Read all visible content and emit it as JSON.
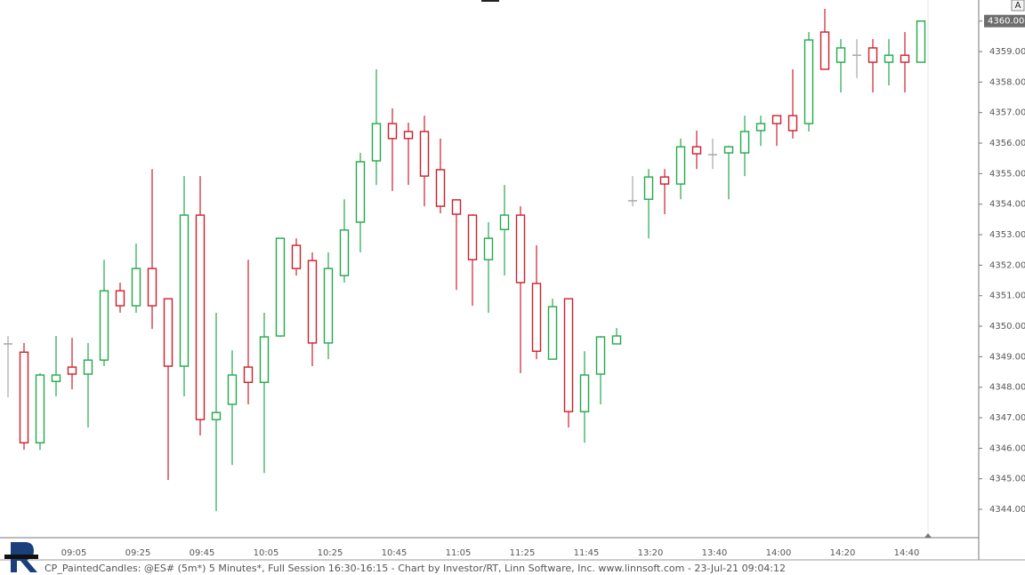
{
  "chart_data": {
    "type": "candlestick",
    "x": [
      null,
      null,
      null,
      null,
      "09:05",
      null,
      null,
      null,
      "09:25",
      null,
      null,
      null,
      "09:45",
      null,
      null,
      null,
      "10:05",
      null,
      null,
      null,
      "10:25",
      null,
      null,
      null,
      "10:45",
      null,
      null,
      null,
      "11:05",
      null,
      null,
      null,
      "11:25",
      null,
      null,
      null,
      "11:45",
      null,
      null,
      null,
      "13:20",
      null,
      null,
      null,
      "13:40",
      null,
      null,
      null,
      "14:00",
      null,
      null,
      null,
      "14:20",
      null,
      null,
      null,
      "14:40",
      null
    ],
    "open": [
      4349.42,
      4349.15,
      4346.18,
      4348.19,
      4348.66,
      4348.43,
      4348.89,
      4351.16,
      4350.67,
      4351.89,
      4350.9,
      4348.69,
      4353.64,
      4346.94,
      4347.44,
      4348.66,
      4348.16,
      4349.68,
      4352.65,
      4352.15,
      4349.45,
      4351.66,
      4353.41,
      4355.42,
      4356.64,
      4356.38,
      4356.38,
      4355.13,
      4354.14,
      4353.64,
      4352.18,
      4353.17,
      4353.64,
      4351.4,
      4348.92,
      4350.9,
      4347.2,
      4348.43,
      4349.42,
      4354.11,
      4354.16,
      4354.89,
      4354.66,
      4355.88,
      4355.62,
      4355.68,
      4355.68,
      4356.41,
      4356.9,
      4356.9,
      4356.64,
      4359.64,
      4358.65,
      4358.88,
      4359.12,
      4358.65,
      4358.88,
      4358.65
    ],
    "high": [
      4349.68,
      4349.45,
      4348.46,
      4349.68,
      4349.62,
      4349.45,
      4352.18,
      4351.43,
      4352.71,
      4355.15,
      4350.9,
      4354.92,
      4354.92,
      4350.44,
      4349.21,
      4352.18,
      4350.44,
      4352.88,
      4352.88,
      4352.42,
      4352.42,
      4354.16,
      4355.68,
      4358.42,
      4357.14,
      4356.67,
      4356.9,
      4356.15,
      4354.16,
      4353.67,
      4353.41,
      4354.63,
      4353.93,
      4352.65,
      4350.9,
      4350.9,
      4349.18,
      4349.68,
      4349.94,
      4354.92,
      4355.15,
      4355.15,
      4356.15,
      4356.41,
      4356.15,
      4355.91,
      4356.9,
      4356.9,
      4356.9,
      4358.42,
      4359.64,
      4360.4,
      4359.41,
      4359.41,
      4359.41,
      4359.41,
      4359.64,
      4360.0
    ],
    "low": [
      4347.67,
      4345.95,
      4345.95,
      4347.7,
      4347.93,
      4346.68,
      4348.69,
      4350.44,
      4350.44,
      4349.91,
      4344.96,
      4347.7,
      4346.42,
      4343.94,
      4345.45,
      4347.44,
      4345.19,
      4349.65,
      4351.66,
      4348.69,
      4348.92,
      4351.43,
      4352.42,
      4354.63,
      4354.43,
      4354.63,
      4353.93,
      4353.7,
      4351.19,
      4350.67,
      4350.44,
      4351.66,
      4348.46,
      4348.92,
      4348.92,
      4346.68,
      4346.18,
      4347.44,
      4349.42,
      4353.93,
      4352.88,
      4353.67,
      4354.16,
      4355.15,
      4355.15,
      4354.16,
      4354.92,
      4355.91,
      4355.91,
      4356.15,
      4356.38,
      4358.42,
      4357.66,
      4358.13,
      4357.66,
      4357.89,
      4357.66,
      4358.65
    ],
    "close": [
      4349.42,
      4346.18,
      4348.4,
      4348.4,
      4348.43,
      4348.89,
      4351.16,
      4350.67,
      4351.89,
      4350.67,
      4348.69,
      4353.64,
      4346.94,
      4347.17,
      4348.4,
      4348.16,
      4349.65,
      4352.88,
      4351.89,
      4349.45,
      4351.89,
      4353.15,
      4355.39,
      4356.64,
      4356.15,
      4356.15,
      4354.92,
      4353.93,
      4353.67,
      4352.18,
      4352.88,
      4353.64,
      4351.43,
      4349.18,
      4350.64,
      4347.2,
      4348.4,
      4349.65,
      4349.68,
      4354.11,
      4354.89,
      4354.66,
      4355.88,
      4355.65,
      4355.62,
      4355.88,
      4356.38,
      4356.64,
      4356.64,
      4356.41,
      4359.38,
      4358.42,
      4359.12,
      4358.88,
      4358.65,
      4358.88,
      4358.65,
      4360.0
    ],
    "up_color": "#22a84c",
    "down_color": "#cc1f2c",
    "flat_color": "#a8a8a8",
    "last_price_label": "4360.00",
    "ylim": [
      4343.07,
      4360.69
    ],
    "yticks": [
      {
        "value": 4344,
        "label": "4344.00"
      },
      {
        "value": 4345,
        "label": "4345.00"
      },
      {
        "value": 4346,
        "label": "4346.00"
      },
      {
        "value": 4347,
        "label": "4347.00"
      },
      {
        "value": 4348,
        "label": "4348.00"
      },
      {
        "value": 4349,
        "label": "4349.00"
      },
      {
        "value": 4350,
        "label": "4350.00"
      },
      {
        "value": 4351,
        "label": "4351.00"
      },
      {
        "value": 4352,
        "label": "4352.00"
      },
      {
        "value": 4353,
        "label": "4353.00"
      },
      {
        "value": 4354,
        "label": "4354.00"
      },
      {
        "value": 4355,
        "label": "4355.00"
      },
      {
        "value": 4356,
        "label": "4356.00"
      },
      {
        "value": 4357,
        "label": "4357.00"
      },
      {
        "value": 4358,
        "label": "4358.00"
      },
      {
        "value": 4359,
        "label": "4359.00"
      },
      {
        "value": 4360,
        "label": "4360.00"
      }
    ],
    "corner_button": "A",
    "footer": "CP_PaintedCandles: @ES# (5m*) 5 Minutes*, Full Session 16:30-16:15 - Chart by Investor/RT, Linn Software, Inc. www.linnsoft.com - 23-Jul-21 09:04:12"
  }
}
